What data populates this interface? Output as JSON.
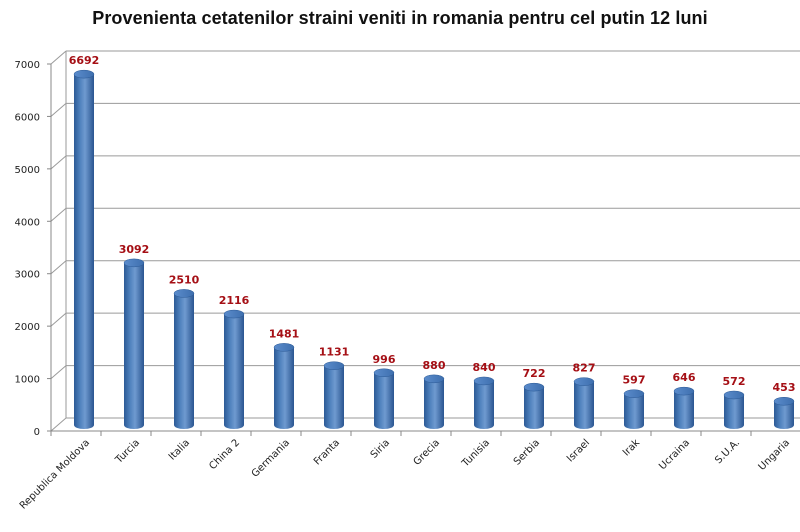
{
  "chart_data": {
    "type": "bar",
    "title": "Provenienta cetatenilor straini veniti in romania  pentru cel putin  12 luni",
    "xlabel": "",
    "ylabel": "",
    "ylim": [
      0,
      7000
    ],
    "yticks": [
      0,
      1000,
      2000,
      3000,
      4000,
      5000,
      6000,
      7000
    ],
    "grid": true,
    "legend": null,
    "style": "3d-cylinder",
    "bar_color": "#4f81bd",
    "label_color": "#a50f15",
    "categories": [
      "Republica Moldova",
      "Turcia",
      "Italia",
      "China 2",
      "Germania",
      "Franta",
      "Siria",
      "Grecia",
      "Tunisia",
      "Serbia",
      "Israel",
      "Irak",
      "Ucraina",
      "S.U.A.",
      "Ungaria"
    ],
    "values": [
      6692,
      3092,
      2510,
      2116,
      1481,
      1131,
      996,
      880,
      840,
      722,
      827,
      597,
      646,
      572,
      453
    ]
  }
}
